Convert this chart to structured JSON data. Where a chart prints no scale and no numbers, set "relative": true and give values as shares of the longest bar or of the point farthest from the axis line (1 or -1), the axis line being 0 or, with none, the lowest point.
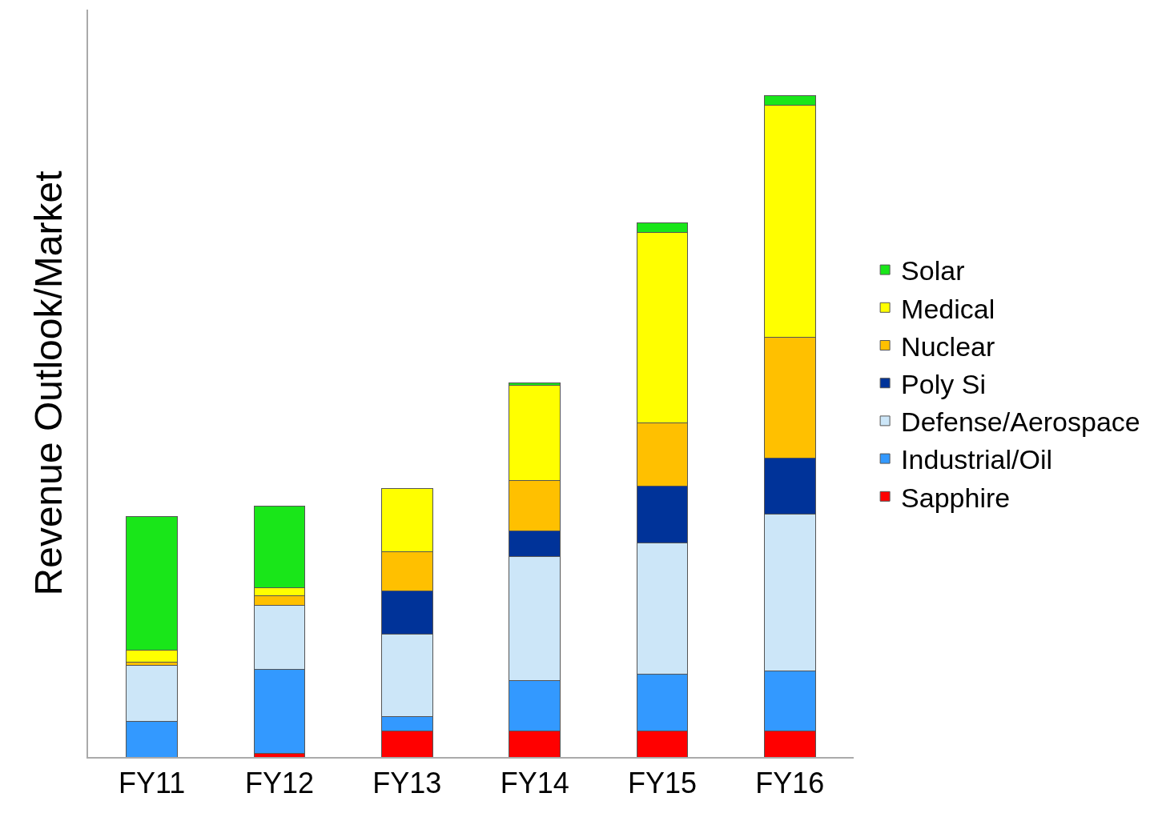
{
  "chart_data": {
    "type": "bar",
    "stacked": true,
    "relative": true,
    "ylabel": "Revenue Outlook/Market",
    "legend": "right",
    "categories": [
      "FY11",
      "FY12",
      "FY13",
      "FY14",
      "FY15",
      "FY16"
    ],
    "series": [
      {
        "name": "Sapphire",
        "color": "#ff0000",
        "values": [
          null,
          0.005,
          0.039,
          0.039,
          0.039,
          0.039
        ]
      },
      {
        "name": "Industrial/Oil",
        "color": "#3399ff",
        "values": [
          0.054,
          0.127,
          0.022,
          0.076,
          0.086,
          0.091
        ]
      },
      {
        "name": "Defense/Aerospace",
        "color": "#cce6f8",
        "values": [
          0.084,
          0.097,
          0.125,
          0.188,
          0.199,
          0.237
        ]
      },
      {
        "name": "Poly Si",
        "color": "#003399",
        "values": [
          null,
          null,
          0.065,
          0.039,
          0.085,
          0.085
        ]
      },
      {
        "name": "Nuclear",
        "color": "#ffc000",
        "values": [
          0.005,
          0.015,
          0.059,
          0.076,
          0.096,
          0.182
        ]
      },
      {
        "name": "Medical",
        "color": "#ffff00",
        "values": [
          0.019,
          0.012,
          0.096,
          0.144,
          0.288,
          0.351
        ]
      },
      {
        "name": "Solar",
        "color": "#19e619",
        "values": [
          0.202,
          0.123,
          null,
          0.004,
          0.015,
          0.015
        ]
      }
    ]
  }
}
